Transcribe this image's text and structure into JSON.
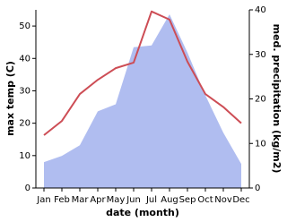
{
  "chart_data": {
    "type": "line-area",
    "x_label": "date (month)",
    "y_label": "max temp (C)",
    "y2_label": "med. precipitation (kg/m2)",
    "categories": [
      "Jan",
      "Feb",
      "Mar",
      "Apr",
      "May",
      "Jun",
      "Jul",
      "Aug",
      "Sep",
      "Oct",
      "Nov",
      "Dec"
    ],
    "series": [
      {
        "name": "max temp",
        "type": "line",
        "color": "#cd4d55",
        "values": [
          16.3,
          20.7,
          29,
          33.4,
          37,
          38.7,
          54.5,
          52,
          39,
          29,
          25,
          20
        ]
      },
      {
        "name": "med. precipitation",
        "type": "area",
        "axis": "y2",
        "color": "#b0bdf0",
        "values": [
          5.8,
          7.2,
          9.6,
          17.2,
          18.8,
          31.6,
          32,
          39,
          30.4,
          20.8,
          12.4,
          5.4
        ]
      }
    ],
    "ylim": [
      0,
      55
    ],
    "yticks": [
      0,
      10,
      20,
      30,
      40,
      50
    ],
    "y2lim": [
      0,
      40
    ],
    "y2ticks": [
      0,
      10,
      20,
      30,
      40
    ]
  }
}
